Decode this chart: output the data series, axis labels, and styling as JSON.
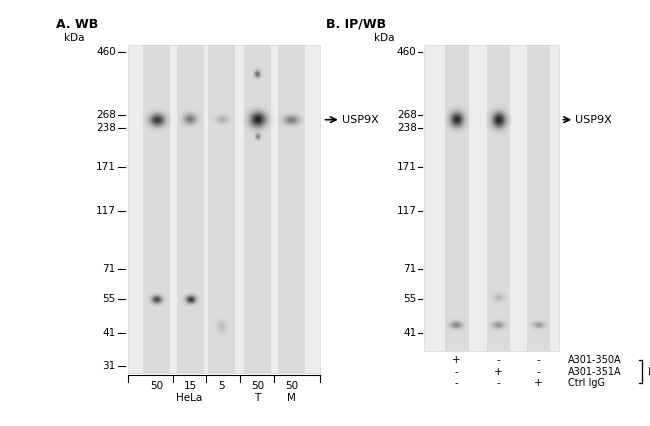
{
  "panel_A_title": "A. WB",
  "panel_B_title": "B. IP/WB",
  "kda_values_A": [
    460,
    268,
    238,
    171,
    117,
    71,
    55,
    41,
    31
  ],
  "kda_values_B": [
    460,
    268,
    238,
    171,
    117,
    71,
    55,
    41
  ],
  "marker_label": "kDa",
  "protein_label": "USP9X",
  "panel_A_lane_labels_top": [
    "50",
    "15",
    "5",
    "50",
    "50"
  ],
  "panel_A_lane_labels_bot": [
    "HeLa",
    "T",
    "M"
  ],
  "panel_B_plus_minus": [
    [
      "+",
      "-",
      "-"
    ],
    [
      "-",
      "+",
      "-"
    ],
    [
      "-",
      "-",
      "+"
    ]
  ],
  "panel_B_row_labels": [
    "A301-350A",
    "A301-351A",
    "Ctrl IgG"
  ],
  "panel_B_ip_label": "IP",
  "bg_color": "#ffffff",
  "text_color": "#000000",
  "tick_label_fontsize": 7.5,
  "title_fontsize": 9,
  "label_fontsize": 8
}
